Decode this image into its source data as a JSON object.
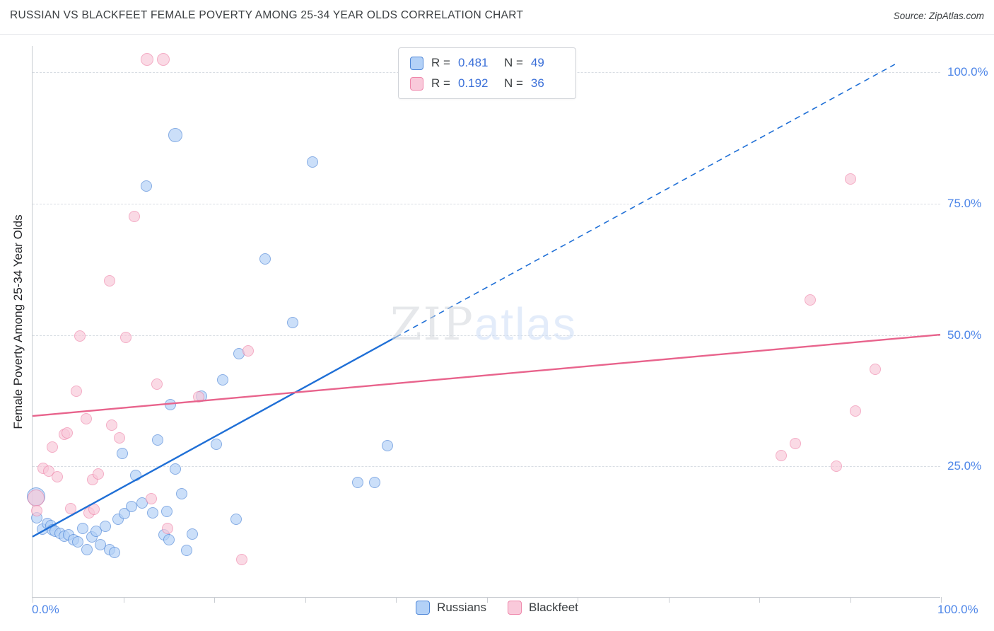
{
  "header": {
    "title": "RUSSIAN VS BLACKFEET FEMALE POVERTY AMONG 25-34 YEAR OLDS CORRELATION CHART",
    "source": "Source: ZipAtlas.com"
  },
  "watermark": {
    "zip": "ZIP",
    "atlas": "atlas"
  },
  "legend_box": {
    "rows": [
      {
        "r_label": "R =",
        "r_value": "0.481",
        "n_label": "N =",
        "n_value": "49"
      },
      {
        "r_label": "R =",
        "r_value": "0.192",
        "n_label": "N =",
        "n_value": "36"
      }
    ]
  },
  "chart_data": {
    "type": "scatter",
    "title": "RUSSIAN VS BLACKFEET FEMALE POVERTY AMONG 25-34 YEAR OLDS CORRELATION CHART",
    "xlabel": "",
    "ylabel": "Female Poverty Among 25-34 Year Olds",
    "units": "%",
    "xlim": [
      0,
      100
    ],
    "ylim": [
      0,
      105
    ],
    "grid": "horizontal-dashed",
    "legend_position": "top-center",
    "x_tick_labels": [
      "0.0%",
      "100.0%"
    ],
    "x_ticks": [
      0,
      10,
      20,
      30,
      40,
      50,
      60,
      70,
      80,
      90,
      100
    ],
    "y_ticks": [
      {
        "value": 25,
        "label": "25.0%"
      },
      {
        "value": 50,
        "label": "50.0%"
      },
      {
        "value": 75,
        "label": "75.0%"
      },
      {
        "value": 100,
        "label": "100.0%"
      }
    ],
    "series": [
      {
        "name": "Russians",
        "R": 0.481,
        "N": 49,
        "fill": "#b3d1f7",
        "stroke": "#4f87d8",
        "points": [
          [
            0.4,
            19.3,
            13
          ],
          [
            0.5,
            15.2
          ],
          [
            1.1,
            13.0
          ],
          [
            1.6,
            14.1
          ],
          [
            2.0,
            13.7
          ],
          [
            2.2,
            12.9
          ],
          [
            2.5,
            12.7
          ],
          [
            3.0,
            12.3
          ],
          [
            3.5,
            11.7
          ],
          [
            4.0,
            12.0
          ],
          [
            4.5,
            11.1
          ],
          [
            5.0,
            10.6
          ],
          [
            5.5,
            13.2
          ],
          [
            6.0,
            9.2
          ],
          [
            6.5,
            11.6
          ],
          [
            7.0,
            12.6
          ],
          [
            7.5,
            10.1
          ],
          [
            8.0,
            13.6
          ],
          [
            8.5,
            9.1
          ],
          [
            9.0,
            8.6
          ],
          [
            9.4,
            15.0
          ],
          [
            9.9,
            27.5
          ],
          [
            10.1,
            16.0
          ],
          [
            10.9,
            17.3
          ],
          [
            11.4,
            23.3
          ],
          [
            12.1,
            18.1
          ],
          [
            12.5,
            78.4
          ],
          [
            13.2,
            16.2
          ],
          [
            13.8,
            30.0
          ],
          [
            14.5,
            12.0
          ],
          [
            14.8,
            16.4
          ],
          [
            15.0,
            11.0
          ],
          [
            15.2,
            36.8
          ],
          [
            15.7,
            88.1,
            10
          ],
          [
            15.7,
            24.5
          ],
          [
            16.4,
            19.8
          ],
          [
            17.0,
            9.0
          ],
          [
            17.6,
            12.1
          ],
          [
            18.6,
            38.4
          ],
          [
            20.2,
            29.2
          ],
          [
            20.9,
            41.5
          ],
          [
            22.4,
            15.0
          ],
          [
            22.7,
            46.5
          ],
          [
            25.6,
            64.5
          ],
          [
            28.6,
            52.4
          ],
          [
            30.8,
            82.9
          ],
          [
            35.8,
            22.0
          ],
          [
            37.7,
            22.0
          ],
          [
            39.1,
            29.0
          ]
        ]
      },
      {
        "name": "Blackfeet",
        "R": 0.192,
        "N": 36,
        "fill": "#f9c9da",
        "stroke": "#ef87ab",
        "points": [
          [
            0.4,
            19.0,
            12
          ],
          [
            0.5,
            16.5
          ],
          [
            1.2,
            24.7
          ],
          [
            1.8,
            24.1
          ],
          [
            2.2,
            28.7
          ],
          [
            2.7,
            23.0
          ],
          [
            3.5,
            31.1
          ],
          [
            3.8,
            31.3
          ],
          [
            4.2,
            17.0
          ],
          [
            4.8,
            39.3
          ],
          [
            5.2,
            49.8
          ],
          [
            5.9,
            34.0
          ],
          [
            6.2,
            16.2
          ],
          [
            6.6,
            22.5
          ],
          [
            6.8,
            16.8
          ],
          [
            7.2,
            23.6
          ],
          [
            8.5,
            60.3
          ],
          [
            8.7,
            32.8
          ],
          [
            9.6,
            30.4
          ],
          [
            10.3,
            49.5
          ],
          [
            11.2,
            72.5
          ],
          [
            12.6,
            102.5,
            9
          ],
          [
            13.1,
            18.8
          ],
          [
            13.7,
            40.6
          ],
          [
            14.4,
            102.5,
            9
          ],
          [
            14.9,
            13.2
          ],
          [
            18.3,
            38.2
          ],
          [
            23.0,
            7.3
          ],
          [
            23.7,
            47.0
          ],
          [
            82.4,
            27.0
          ],
          [
            84.0,
            29.3
          ],
          [
            85.6,
            56.7
          ],
          [
            88.5,
            25.0
          ],
          [
            90.0,
            79.7
          ],
          [
            90.6,
            35.5
          ],
          [
            92.8,
            43.5
          ]
        ]
      }
    ],
    "trend_lines": [
      {
        "series": "Russians",
        "color": "#1f6fd6",
        "segments": [
          {
            "x1": 0,
            "y1": 11.5,
            "x2": 40,
            "y2": 49.5,
            "dashed": false
          },
          {
            "x1": 40,
            "y1": 49.5,
            "x2": 95,
            "y2": 101.5,
            "dashed": true
          }
        ]
      },
      {
        "series": "Blackfeet",
        "color": "#e8638c",
        "segments": [
          {
            "x1": 0,
            "y1": 34.5,
            "x2": 100,
            "y2": 50.0,
            "dashed": false
          }
        ]
      }
    ]
  }
}
